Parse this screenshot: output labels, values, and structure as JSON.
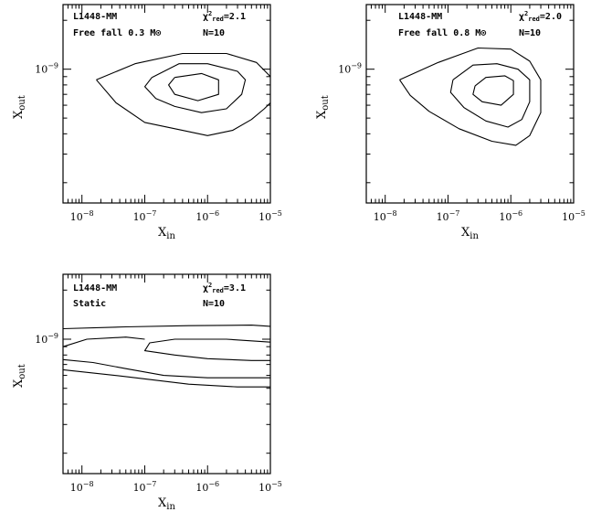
{
  "chart_data": [
    {
      "type": "contour",
      "source": "L1448-MM",
      "model": "Free fall 0.3 M⊙",
      "chi2red": "=2.1",
      "n": "N=10",
      "xlabel": "X",
      "xlabel_sub": "in",
      "ylabel": "X",
      "ylabel_sub": "out",
      "x_scale": "log",
      "y_scale": "log",
      "xlim": [
        5e-09,
        1e-05
      ],
      "ylim": [
        1.5e-10,
        2.5e-09
      ],
      "x_tick_labels": [
        {
          "mantissa": "10",
          "exp": "−8",
          "value": 1e-08
        },
        {
          "mantissa": "10",
          "exp": "−7",
          "value": 1e-07
        },
        {
          "mantissa": "10",
          "exp": "−6",
          "value": 1e-06
        },
        {
          "mantissa": "10",
          "exp": "−5",
          "value": 1e-05
        }
      ],
      "y_tick_labels": [
        {
          "mantissa": "10",
          "exp": "−9",
          "value": 1e-09
        }
      ],
      "contours": [
        [
          [
            3e-07,
            8.9e-10
          ],
          [
            8e-07,
            9.4e-10
          ],
          [
            1.5e-06,
            8.6e-10
          ],
          [
            1.5e-06,
            7e-10
          ],
          [
            7e-07,
            6.4e-10
          ],
          [
            3e-07,
            7e-10
          ],
          [
            2.4e-07,
            8e-10
          ],
          [
            3e-07,
            8.9e-10
          ]
        ],
        [
          [
            1.3e-07,
            8.9e-10
          ],
          [
            3.5e-07,
            1.08e-09
          ],
          [
            1e-06,
            1.08e-09
          ],
          [
            3e-06,
            9.7e-10
          ],
          [
            4e-06,
            8.6e-10
          ],
          [
            3.5e-06,
            7e-10
          ],
          [
            2e-06,
            5.7e-10
          ],
          [
            8e-07,
            5.4e-10
          ],
          [
            3e-07,
            5.9e-10
          ],
          [
            1.5e-07,
            6.6e-10
          ],
          [
            1e-07,
            7.8e-10
          ],
          [
            1.3e-07,
            8.9e-10
          ]
        ],
        [
          [
            1.7e-08,
            8.6e-10
          ],
          [
            7e-08,
            1.08e-09
          ],
          [
            4e-07,
            1.25e-09
          ],
          [
            2e-06,
            1.25e-09
          ],
          [
            6e-06,
            1.1e-09
          ],
          [
            1e-05,
            9e-10
          ]
        ],
        [
          [
            1.7e-08,
            8.6e-10
          ],
          [
            3.5e-08,
            6.2e-10
          ],
          [
            1e-07,
            4.7e-10
          ],
          [
            4e-07,
            4.2e-10
          ],
          [
            1e-06,
            3.9e-10
          ],
          [
            2.5e-06,
            4.2e-10
          ],
          [
            5e-06,
            4.9e-10
          ],
          [
            8e-06,
            5.7e-10
          ],
          [
            1e-05,
            6.2e-10
          ]
        ]
      ]
    },
    {
      "type": "contour",
      "source": "L1448-MM",
      "model": "Free fall 0.8 M⊙",
      "chi2red": "=2.0",
      "n": "N=10",
      "xlabel": "X",
      "xlabel_sub": "in",
      "ylabel": "X",
      "ylabel_sub": "out",
      "x_scale": "log",
      "y_scale": "log",
      "xlim": [
        5e-09,
        1e-05
      ],
      "ylim": [
        1.5e-10,
        2.5e-09
      ],
      "x_tick_labels": [
        {
          "mantissa": "10",
          "exp": "−8",
          "value": 1e-08
        },
        {
          "mantissa": "10",
          "exp": "−7",
          "value": 1e-07
        },
        {
          "mantissa": "10",
          "exp": "−6",
          "value": 1e-06
        },
        {
          "mantissa": "10",
          "exp": "−5",
          "value": 1e-05
        }
      ],
      "y_tick_labels": [
        {
          "mantissa": "10",
          "exp": "−9",
          "value": 1e-09
        }
      ],
      "contours": [
        [
          [
            2.7e-07,
            7.9e-10
          ],
          [
            4e-07,
            8.9e-10
          ],
          [
            8e-07,
            9.1e-10
          ],
          [
            1.1e-06,
            8.5e-10
          ],
          [
            1.1e-06,
            7e-10
          ],
          [
            7e-07,
            6e-10
          ],
          [
            3.5e-07,
            6.3e-10
          ],
          [
            2.5e-07,
            7e-10
          ],
          [
            2.7e-07,
            7.9e-10
          ]
        ],
        [
          [
            1.2e-07,
            8.6e-10
          ],
          [
            2.5e-07,
            1.06e-09
          ],
          [
            6e-07,
            1.08e-09
          ],
          [
            1.3e-06,
            1e-09
          ],
          [
            2e-06,
            8.6e-10
          ],
          [
            2e-06,
            6.3e-10
          ],
          [
            1.5e-06,
            4.9e-10
          ],
          [
            9e-07,
            4.4e-10
          ],
          [
            4e-07,
            4.8e-10
          ],
          [
            1.8e-07,
            5.8e-10
          ],
          [
            1.1e-07,
            7.2e-10
          ],
          [
            1.2e-07,
            8.6e-10
          ]
        ],
        [
          [
            1.7e-08,
            8.6e-10
          ],
          [
            7e-08,
            1.1e-09
          ],
          [
            3e-07,
            1.35e-09
          ],
          [
            1e-06,
            1.33e-09
          ],
          [
            2e-06,
            1.12e-09
          ],
          [
            3e-06,
            8.6e-10
          ],
          [
            3e-06,
            5.4e-10
          ],
          [
            2e-06,
            3.9e-10
          ],
          [
            1.2e-06,
            3.4e-10
          ],
          [
            5e-07,
            3.6e-10
          ],
          [
            1.5e-07,
            4.3e-10
          ],
          [
            5e-08,
            5.5e-10
          ],
          [
            2.5e-08,
            6.9e-10
          ],
          [
            1.7e-08,
            8.6e-10
          ]
        ]
      ]
    },
    {
      "type": "contour",
      "source": "L1448-MM",
      "model": "Static",
      "chi2red": "=3.1",
      "n": "N=10",
      "xlabel": "X",
      "xlabel_sub": "in",
      "ylabel": "X",
      "ylabel_sub": "out",
      "x_scale": "log",
      "y_scale": "log",
      "xlim": [
        5e-09,
        1e-05
      ],
      "ylim": [
        1.5e-10,
        2.5e-09
      ],
      "x_tick_labels": [
        {
          "mantissa": "10",
          "exp": "−8",
          "value": 1e-08
        },
        {
          "mantissa": "10",
          "exp": "−7",
          "value": 1e-07
        },
        {
          "mantissa": "10",
          "exp": "−6",
          "value": 1e-06
        },
        {
          "mantissa": "10",
          "exp": "−5",
          "value": 1e-05
        }
      ],
      "y_tick_labels": [
        {
          "mantissa": "10",
          "exp": "−9",
          "value": 1e-09
        }
      ],
      "contours": [
        [
          [
            5e-09,
            1.16e-09
          ],
          [
            5e-08,
            1.19e-09
          ],
          [
            5e-07,
            1.21e-09
          ],
          [
            5e-06,
            1.22e-09
          ],
          [
            1e-05,
            1.2e-09
          ]
        ],
        [
          [
            1e-05,
            9.6e-10
          ],
          [
            2e-06,
            1e-09
          ],
          [
            3e-07,
            1e-09
          ],
          [
            1.2e-07,
            9.5e-10
          ],
          [
            1e-07,
            8.5e-10
          ],
          [
            3e-07,
            8e-10
          ],
          [
            1e-06,
            7.6e-10
          ],
          [
            5e-06,
            7.4e-10
          ],
          [
            1e-05,
            7.4e-10
          ]
        ],
        [
          [
            5e-09,
            9e-10
          ],
          [
            1.2e-08,
            1e-09
          ],
          [
            5e-08,
            1.03e-09
          ],
          [
            1e-07,
            1e-09
          ]
        ],
        [
          [
            5e-09,
            7.5e-10
          ],
          [
            1.5e-08,
            7.2e-10
          ],
          [
            5e-08,
            6.6e-10
          ],
          [
            2e-07,
            6e-10
          ],
          [
            1e-06,
            5.8e-10
          ],
          [
            5e-06,
            5.8e-10
          ],
          [
            1e-05,
            5.8e-10
          ]
        ],
        [
          [
            5e-09,
            6.5e-10
          ],
          [
            5e-08,
            5.9e-10
          ],
          [
            5e-07,
            5.3e-10
          ],
          [
            3e-06,
            5.1e-10
          ],
          [
            1e-05,
            5.1e-10
          ]
        ]
      ]
    }
  ]
}
